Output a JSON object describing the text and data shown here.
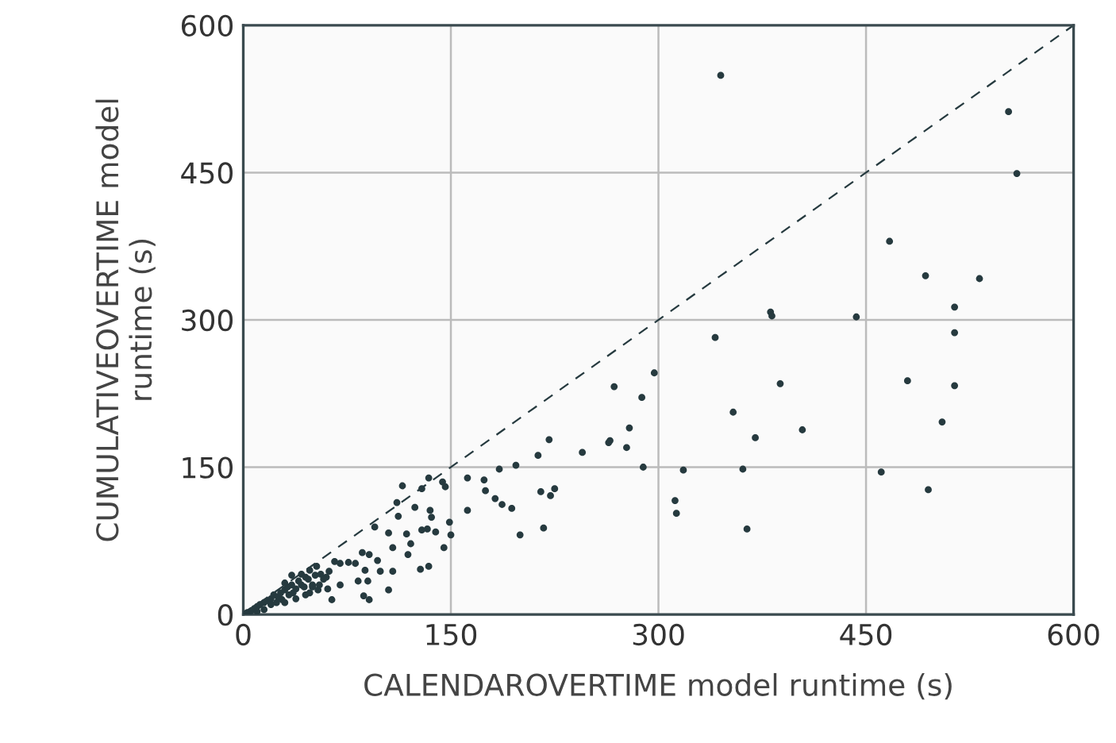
{
  "chart_data": {
    "type": "scatter",
    "xlabel": "CALENDAROVERTIME model runtime (s)",
    "ylabel": "CUMULATIVEOVERTIME model\nruntime (s)",
    "xlim": [
      0,
      600
    ],
    "ylim": [
      0,
      600
    ],
    "xticks": [
      0,
      150,
      300,
      450,
      600
    ],
    "yticks": [
      0,
      150,
      300,
      450,
      600
    ],
    "grid": true,
    "marker": "circle",
    "series": [
      {
        "color": "#263a3f",
        "x": [
          345,
          553,
          559,
          467,
          493,
          532,
          514,
          514,
          381,
          382,
          443,
          341,
          297,
          268,
          288,
          388,
          480,
          514,
          354,
          279,
          505,
          404,
          370,
          221,
          213,
          245,
          264,
          265,
          277,
          289,
          318,
          361,
          461,
          215,
          222,
          225,
          312,
          313,
          495,
          217,
          364,
          115,
          134,
          129,
          144,
          146,
          111,
          124,
          135,
          136,
          112,
          162,
          174,
          185,
          197,
          175,
          182,
          187,
          194,
          162,
          200,
          149,
          150,
          95,
          105,
          118,
          129,
          133,
          139,
          108,
          121,
          119,
          145,
          128,
          134,
          86,
          91,
          97,
          108,
          99,
          76,
          81,
          66,
          70,
          88,
          83,
          90,
          87,
          91,
          105,
          70,
          64,
          53,
          48,
          42,
          56,
          58,
          61,
          50,
          54,
          5,
          8,
          10,
          12,
          15,
          18,
          20,
          22,
          25,
          27,
          30,
          32,
          35,
          38,
          40,
          28,
          33,
          36,
          42,
          45,
          47,
          44,
          20,
          15,
          10,
          3,
          6,
          2,
          24,
          30,
          38,
          45,
          50,
          52,
          48,
          55,
          60,
          62,
          35,
          30
        ],
        "values": [
          549,
          512,
          449,
          380,
          345,
          342,
          313,
          287,
          308,
          304,
          303,
          282,
          246,
          232,
          221,
          235,
          238,
          233,
          206,
          190,
          196,
          188,
          180,
          178,
          162,
          165,
          175,
          177,
          170,
          150,
          147,
          148,
          145,
          125,
          121,
          128,
          116,
          103,
          127,
          88,
          87,
          131,
          139,
          128,
          135,
          130,
          114,
          109,
          106,
          99,
          100,
          139,
          137,
          148,
          152,
          126,
          118,
          112,
          108,
          106,
          81,
          94,
          81,
          89,
          83,
          82,
          86,
          87,
          84,
          68,
          72,
          61,
          68,
          46,
          49,
          63,
          61,
          55,
          44,
          44,
          53,
          52,
          54,
          52,
          45,
          34,
          34,
          19,
          15,
          25,
          30,
          15,
          49,
          45,
          41,
          41,
          36,
          26,
          30,
          25,
          3,
          6,
          8,
          10,
          12,
          14,
          16,
          20,
          18,
          22,
          25,
          28,
          30,
          26,
          34,
          15,
          20,
          22,
          30,
          38,
          36,
          28,
          10,
          5,
          3,
          2,
          4,
          1,
          12,
          12,
          16,
          20,
          28,
          40,
          22,
          30,
          38,
          44,
          40,
          32
        ]
      },
      {
        "type": "line",
        "color": "#263a3f",
        "line_style": "dashed",
        "marker": "none",
        "x": [
          0,
          600
        ],
        "values": [
          0,
          600
        ]
      }
    ]
  }
}
